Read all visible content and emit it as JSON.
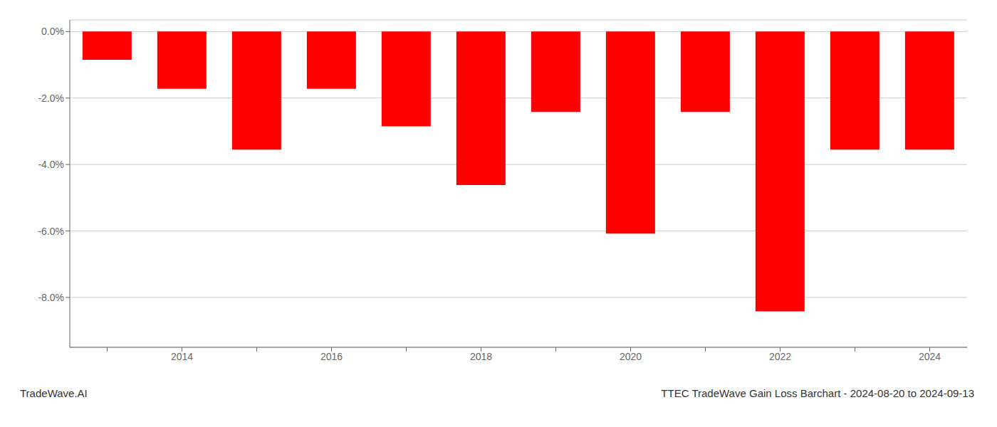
{
  "chart_data": {
    "type": "bar",
    "title": "TTEC TradeWave Gain Loss Barchart - 2024-08-20 to 2024-09-13",
    "annotations": [
      "TradeWave.AI"
    ],
    "categories": [
      null,
      "2014",
      null,
      "2016",
      null,
      "2018",
      null,
      "2020",
      null,
      "2022",
      null,
      "2024"
    ],
    "values": [
      -0.85,
      -1.72,
      -3.55,
      -1.72,
      -2.85,
      -4.62,
      -2.42,
      -6.08,
      -2.42,
      -8.42,
      -3.55,
      -3.55
    ],
    "color": "#ff0000",
    "ylim": [
      -9.5,
      0.35
    ],
    "yticks": [
      {
        "value": 0.0,
        "label": "0.0%"
      },
      {
        "value": -2.0,
        "label": "-2.0%"
      },
      {
        "value": -4.0,
        "label": "-4.0%"
      },
      {
        "value": -6.0,
        "label": "-6.0%"
      },
      {
        "value": -8.0,
        "label": "-8.0%"
      }
    ],
    "grid": true
  }
}
